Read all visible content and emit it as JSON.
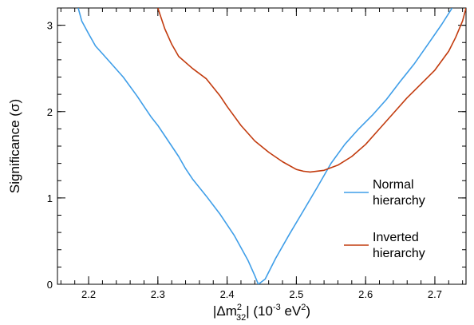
{
  "chart_data": {
    "type": "line",
    "xlabel": {
      "pre": "|Δm",
      "sup": "2",
      "sub": "32",
      "mid": "| (10",
      "exp": "-3",
      "unit": " eV",
      "unit_sup": "2",
      "close": ")"
    },
    "ylabel": "Significance (σ)",
    "xlim": [
      2.155,
      2.745
    ],
    "ylim": [
      0,
      3.2
    ],
    "xticks": [
      2.2,
      2.3,
      2.4,
      2.5,
      2.6,
      2.7
    ],
    "xtick_labels": [
      "2.2",
      "2.3",
      "2.4",
      "2.5",
      "2.6",
      "2.7"
    ],
    "yticks": [
      0,
      1,
      2,
      3
    ],
    "ytick_labels": [
      "0",
      "1",
      "2",
      "3"
    ],
    "legend_position": "right",
    "series": [
      {
        "name_lines": [
          "Normal",
          "hierarchy"
        ],
        "color": "#3f9ee8",
        "points": [
          [
            2.185,
            3.2
          ],
          [
            2.19,
            3.05
          ],
          [
            2.2,
            2.9
          ],
          [
            2.21,
            2.76
          ],
          [
            2.23,
            2.58
          ],
          [
            2.25,
            2.4
          ],
          [
            2.27,
            2.18
          ],
          [
            2.28,
            2.06
          ],
          [
            2.29,
            1.94
          ],
          [
            2.3,
            1.84
          ],
          [
            2.31,
            1.72
          ],
          [
            2.33,
            1.48
          ],
          [
            2.34,
            1.34
          ],
          [
            2.35,
            1.22
          ],
          [
            2.37,
            1.02
          ],
          [
            2.39,
            0.81
          ],
          [
            2.41,
            0.57
          ],
          [
            2.43,
            0.28
          ],
          [
            2.44,
            0.1
          ],
          [
            2.445,
            0.0
          ],
          [
            2.455,
            0.06
          ],
          [
            2.47,
            0.3
          ],
          [
            2.49,
            0.58
          ],
          [
            2.51,
            0.85
          ],
          [
            2.53,
            1.12
          ],
          [
            2.55,
            1.4
          ],
          [
            2.57,
            1.62
          ],
          [
            2.59,
            1.8
          ],
          [
            2.61,
            1.96
          ],
          [
            2.63,
            2.14
          ],
          [
            2.65,
            2.35
          ],
          [
            2.67,
            2.55
          ],
          [
            2.69,
            2.78
          ],
          [
            2.71,
            3.01
          ],
          [
            2.725,
            3.2
          ]
        ]
      },
      {
        "name_lines": [
          "Inverted",
          "hierarchy"
        ],
        "color": "#c23b0e",
        "points": [
          [
            2.3,
            3.2
          ],
          [
            2.31,
            2.96
          ],
          [
            2.32,
            2.78
          ],
          [
            2.33,
            2.64
          ],
          [
            2.35,
            2.5
          ],
          [
            2.37,
            2.38
          ],
          [
            2.39,
            2.18
          ],
          [
            2.4,
            2.06
          ],
          [
            2.42,
            1.84
          ],
          [
            2.44,
            1.66
          ],
          [
            2.46,
            1.53
          ],
          [
            2.48,
            1.42
          ],
          [
            2.5,
            1.33
          ],
          [
            2.51,
            1.31
          ],
          [
            2.52,
            1.3
          ],
          [
            2.54,
            1.32
          ],
          [
            2.56,
            1.38
          ],
          [
            2.58,
            1.48
          ],
          [
            2.6,
            1.62
          ],
          [
            2.62,
            1.8
          ],
          [
            2.64,
            1.98
          ],
          [
            2.66,
            2.16
          ],
          [
            2.68,
            2.32
          ],
          [
            2.7,
            2.48
          ],
          [
            2.72,
            2.7
          ],
          [
            2.73,
            2.86
          ],
          [
            2.74,
            3.05
          ],
          [
            2.745,
            3.2
          ]
        ]
      }
    ]
  }
}
